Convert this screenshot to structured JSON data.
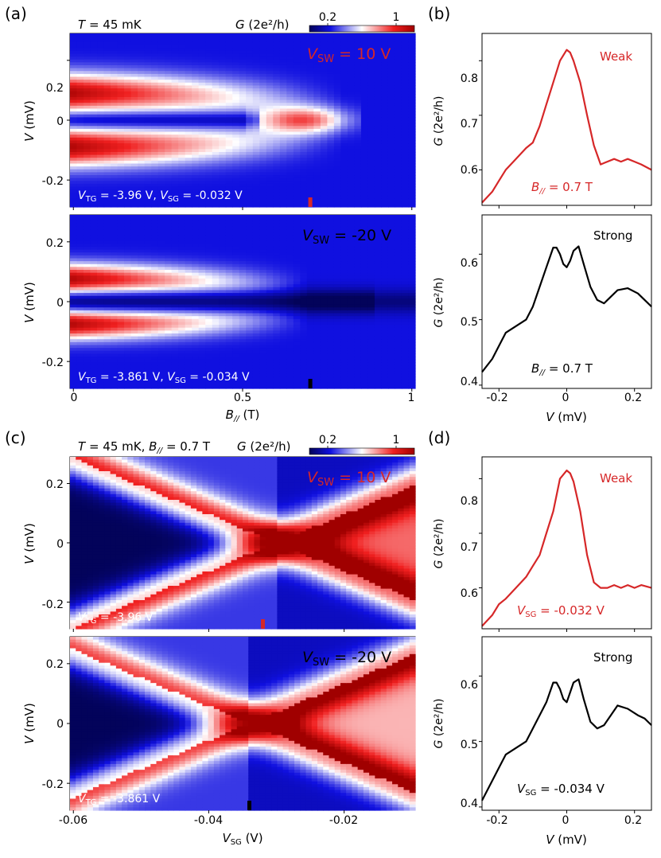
{
  "panels": {
    "a": {
      "label": "(a)",
      "header_T_italic": "T",
      "header_T_rest": " = 45 mK",
      "colorbar_label_italic": "G",
      "colorbar_label_rest": " (2e²/h)",
      "colorbar_ticks": [
        "0.2",
        "1"
      ],
      "xlabel_main": "B",
      "xlabel_sub": "//",
      "xlabel_unit": " (T)",
      "xticks": [
        "0",
        "0.5",
        "1"
      ],
      "ylabel_italic": "V",
      "ylabel_rest": " (mV)",
      "yticks": [
        "0.2",
        "0",
        "-0.2"
      ],
      "top": {
        "vsw_main": "V",
        "vsw_sub": "SW",
        "vsw_value": " = 10 V",
        "params": [
          {
            "main": "V",
            "sub": "TG",
            "value": " = -3.96 V, "
          },
          {
            "main": "V",
            "sub": "SG",
            "value": " = -0.032 V"
          }
        ]
      },
      "bottom": {
        "vsw_main": "V",
        "vsw_sub": "SW",
        "vsw_value": " = -20 V",
        "params": [
          {
            "main": "V",
            "sub": "TG",
            "value": " = -3.861 V, "
          },
          {
            "main": "V",
            "sub": "SG",
            "value": " = -0.034 V"
          }
        ]
      }
    },
    "b": {
      "label": "(b)",
      "top_text": "Weak",
      "bottom_text": "Strong",
      "annotation_main": "B",
      "annotation_sub": "//",
      "annotation_value": " = 0.7 T",
      "ylabel_italic": "G",
      "ylabel_rest": " (2e²/h)",
      "top_yticks": [
        "0.8",
        "0.7",
        "0.6"
      ],
      "bottom_yticks": [
        "0.6",
        "0.5",
        "0.4"
      ],
      "xticks": [
        "-0.2",
        "0",
        "0.2"
      ],
      "xlabel_italic": "V",
      "xlabel_rest": " (mV)"
    },
    "c": {
      "label": "(c)",
      "header_T_italic": "T",
      "header_T_rest": " = 45 mK, ",
      "header_B_main": "B",
      "header_B_sub": "//",
      "header_B_rest": "  = 0.7 T",
      "colorbar_label_italic": "G",
      "colorbar_label_rest": " (2e²/h)",
      "colorbar_ticks": [
        "0.2",
        "1"
      ],
      "xlabel_main": "V",
      "xlabel_sub": "SG",
      "xlabel_unit": " (V)",
      "xticks": [
        "-0.06",
        "-0.04",
        "-0.02"
      ],
      "ylabel_italic": "V",
      "ylabel_rest": " (mV)",
      "yticks": [
        "0.2",
        "0",
        "-0.2"
      ],
      "top": {
        "vsw_main": "V",
        "vsw_sub": "SW",
        "vsw_value": " = 10 V",
        "params": [
          {
            "main": "V",
            "sub": "TG",
            "value": " = -3.96 V"
          }
        ]
      },
      "bottom": {
        "vsw_main": "V",
        "vsw_sub": "SW",
        "vsw_value": " = -20 V",
        "params": [
          {
            "main": "V",
            "sub": "TG",
            "value": " = -3.861 V"
          }
        ]
      }
    },
    "d": {
      "label": "(d)",
      "top_text": "Weak",
      "bottom_text": "Strong",
      "top_annotation_main": "V",
      "top_annotation_sub": "SG",
      "top_annotation_value": " = -0.032 V",
      "bottom_annotation_main": "V",
      "bottom_annotation_sub": "SG",
      "bottom_annotation_value": " = -0.034 V",
      "ylabel_italic": "G",
      "ylabel_rest": " (2e²/h)",
      "top_yticks": [
        "0.8",
        "0.7",
        "0.6"
      ],
      "bottom_yticks": [
        "0.6",
        "0.5",
        "0.4"
      ],
      "xticks": [
        "-0.2",
        "0",
        "0.2"
      ],
      "xlabel_italic": "V",
      "xlabel_rest": " (mV)"
    }
  },
  "colors": {
    "weak": "#d62728",
    "strong": "#000000",
    "cmap_low": "#03035a",
    "cmap_mid": "#ffffff",
    "cmap_high": "#b20000"
  },
  "chart_data": [
    {
      "id": "a-top",
      "type": "heatmap",
      "x_range": [
        -0.01,
        1.01
      ],
      "y_range": [
        -0.29,
        0.29
      ],
      "z_range": [
        0.1,
        1.1
      ],
      "x_columns": 51,
      "y_rows": 60,
      "marker_x": 0.7,
      "marker_color": "#d62728",
      "zero_bias_peak_end_x": 0.83,
      "coherence_peak_v": 0.09,
      "coherence_peak_g": 0.9,
      "zero_bias_g": 0.2,
      "background_g": 0.25
    },
    {
      "id": "a-bottom",
      "type": "heatmap",
      "x_range": [
        -0.01,
        1.01
      ],
      "y_range": [
        -0.29,
        0.29
      ],
      "z_range": [
        0.1,
        1.1
      ],
      "x_columns": 51,
      "y_rows": 60,
      "marker_x": 0.7,
      "marker_color": "#000000",
      "coherence_peak_v": 0.07,
      "coherence_peak_g": 0.85,
      "zero_bias_g": 0.1,
      "background_g": 0.3
    },
    {
      "id": "b-top",
      "type": "line",
      "x_range": [
        -0.25,
        0.25
      ],
      "y_range": [
        0.535,
        0.85
      ],
      "series": [
        {
          "values_x": [
            -0.25,
            -0.22,
            -0.2,
            -0.18,
            -0.15,
            -0.12,
            -0.1,
            -0.08,
            -0.06,
            -0.04,
            -0.02,
            0.0,
            0.01,
            0.02,
            0.04,
            0.06,
            0.08,
            0.1,
            0.12,
            0.14,
            0.16,
            0.18,
            0.2,
            0.22,
            0.25
          ],
          "values_y": [
            0.54,
            0.56,
            0.58,
            0.6,
            0.62,
            0.64,
            0.65,
            0.68,
            0.72,
            0.76,
            0.8,
            0.82,
            0.815,
            0.8,
            0.76,
            0.7,
            0.645,
            0.61,
            0.615,
            0.62,
            0.615,
            0.62,
            0.615,
            0.61,
            0.6
          ]
        }
      ]
    },
    {
      "id": "b-bottom",
      "type": "line",
      "x_range": [
        -0.25,
        0.25
      ],
      "y_range": [
        0.395,
        0.66
      ],
      "series": [
        {
          "values_x": [
            -0.25,
            -0.22,
            -0.2,
            -0.18,
            -0.15,
            -0.12,
            -0.1,
            -0.08,
            -0.06,
            -0.04,
            -0.03,
            -0.02,
            -0.01,
            0.0,
            0.01,
            0.02,
            0.035,
            0.05,
            0.07,
            0.09,
            0.11,
            0.13,
            0.15,
            0.18,
            0.21,
            0.23,
            0.25
          ],
          "values_y": [
            0.42,
            0.44,
            0.46,
            0.48,
            0.49,
            0.5,
            0.52,
            0.55,
            0.58,
            0.61,
            0.61,
            0.6,
            0.585,
            0.58,
            0.59,
            0.605,
            0.612,
            0.585,
            0.55,
            0.53,
            0.525,
            0.535,
            0.545,
            0.548,
            0.54,
            0.53,
            0.52
          ]
        }
      ]
    },
    {
      "id": "c-top",
      "type": "heatmap",
      "x_range": [
        -0.0605,
        -0.0095
      ],
      "y_range": [
        -0.29,
        0.29
      ],
      "z_range": [
        0.1,
        1.1
      ],
      "x_columns": 60,
      "y_rows": 60,
      "marker_x": -0.032,
      "marker_color": "#d62728",
      "crossing_x": -0.03,
      "crossing_v": 0.0
    },
    {
      "id": "c-bottom",
      "type": "heatmap",
      "x_range": [
        -0.0605,
        -0.0095
      ],
      "y_range": [
        -0.29,
        0.29
      ],
      "z_range": [
        0.1,
        1.1
      ],
      "x_columns": 60,
      "y_rows": 60,
      "marker_x": -0.034,
      "marker_color": "#000000",
      "crossing_x": -0.034,
      "crossing_v": 0.0
    },
    {
      "id": "d-top",
      "type": "line",
      "x_range": [
        -0.25,
        0.25
      ],
      "y_range": [
        0.525,
        0.84
      ],
      "series": [
        {
          "values_x": [
            -0.25,
            -0.22,
            -0.2,
            -0.18,
            -0.15,
            -0.12,
            -0.1,
            -0.08,
            -0.06,
            -0.04,
            -0.02,
            0.0,
            0.01,
            0.02,
            0.04,
            0.06,
            0.08,
            0.1,
            0.12,
            0.14,
            0.16,
            0.18,
            0.2,
            0.22,
            0.25
          ],
          "values_y": [
            0.53,
            0.55,
            0.57,
            0.58,
            0.6,
            0.62,
            0.64,
            0.66,
            0.7,
            0.74,
            0.8,
            0.815,
            0.81,
            0.795,
            0.74,
            0.66,
            0.61,
            0.6,
            0.6,
            0.605,
            0.6,
            0.605,
            0.6,
            0.605,
            0.6
          ]
        }
      ]
    },
    {
      "id": "d-bottom",
      "type": "line",
      "x_range": [
        -0.25,
        0.25
      ],
      "y_range": [
        0.395,
        0.66
      ],
      "series": [
        {
          "values_x": [
            -0.25,
            -0.22,
            -0.2,
            -0.18,
            -0.15,
            -0.12,
            -0.1,
            -0.08,
            -0.06,
            -0.04,
            -0.03,
            -0.02,
            -0.01,
            0.0,
            0.01,
            0.02,
            0.035,
            0.05,
            0.07,
            0.09,
            0.11,
            0.13,
            0.15,
            0.18,
            0.21,
            0.23,
            0.25
          ],
          "values_y": [
            0.41,
            0.44,
            0.46,
            0.48,
            0.49,
            0.5,
            0.52,
            0.54,
            0.56,
            0.59,
            0.59,
            0.58,
            0.565,
            0.56,
            0.575,
            0.59,
            0.595,
            0.565,
            0.53,
            0.52,
            0.525,
            0.54,
            0.555,
            0.55,
            0.54,
            0.535,
            0.525
          ]
        }
      ]
    }
  ]
}
